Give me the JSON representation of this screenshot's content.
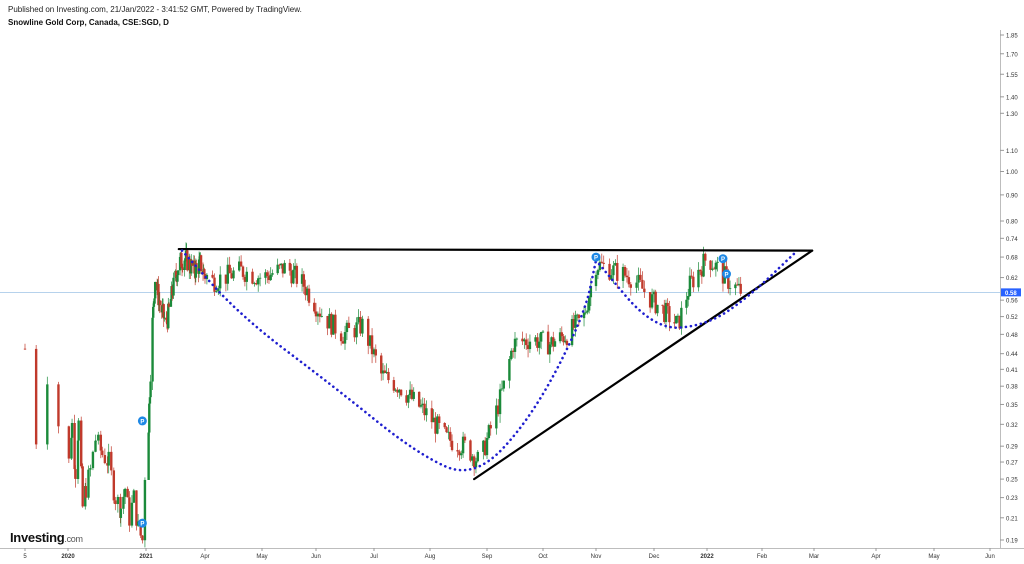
{
  "header": {
    "published": "Published on Investing.com, 21/Jan/2022 - 3:41:52 GMT, Powered by TradingView.",
    "symbol": "Snowline Gold Corp, Canada, CSE:SGD, D"
  },
  "logo": {
    "brand": "Investing",
    "suffix": ".com"
  },
  "chart_data": {
    "type": "candlestick",
    "y_axis": {
      "scale": "log",
      "ticks": [
        "1.85",
        "1.70",
        "1.55",
        "1.40",
        "1.30",
        "1.10",
        "1.00",
        "0.90",
        "0.80",
        "0.74",
        "0.68",
        "0.62",
        "0.56",
        "0.52",
        "0.48",
        "0.44",
        "0.41",
        "0.38",
        "0.35",
        "0.32",
        "0.29",
        "0.27",
        "0.25",
        "0.23",
        "0.21",
        "0.19"
      ],
      "range": [
        0.18,
        1.95
      ]
    },
    "x_axis": {
      "ticks": [
        "5",
        "2020",
        "2021",
        "Apr",
        "May",
        "Jun",
        "Jul",
        "Aug",
        "Sep",
        "Oct",
        "Nov",
        "Dec",
        "2022",
        "Feb",
        "Mar",
        "Apr",
        "May",
        "Jun"
      ]
    },
    "current_price": {
      "value": 0.58,
      "label": "0.58",
      "color": "#2962ff"
    },
    "colors": {
      "up": "#26a69a",
      "up_dark": "#1b8a3a",
      "down": "#c0392b",
      "pattern_line": "#000000",
      "cup_curve": "#1f1fcf"
    },
    "price_path": [
      {
        "date": "2019-12-05",
        "close": 0.45
      },
      {
        "date": "2019-12-12",
        "close": 0.3
      },
      {
        "date": "2019-12-19",
        "close": 0.4
      },
      {
        "date": "2019-12-26",
        "close": 0.32
      },
      {
        "date": "2020-01-05",
        "close": 0.27
      },
      {
        "date": "2020-01-20",
        "close": 0.32
      },
      {
        "date": "2020-02-05",
        "close": 0.26
      },
      {
        "date": "2020-02-20",
        "close": 0.32
      },
      {
        "date": "2020-03-10",
        "close": 0.22
      },
      {
        "date": "2020-03-25",
        "close": 0.24
      },
      {
        "date": "2020-04-15",
        "close": 0.26
      },
      {
        "date": "2020-05-10",
        "close": 0.3
      },
      {
        "date": "2020-06-10",
        "close": 0.28
      },
      {
        "date": "2020-07-10",
        "close": 0.27
      },
      {
        "date": "2020-08-10",
        "close": 0.23
      },
      {
        "date": "2020-09-05",
        "close": 0.22
      },
      {
        "date": "2020-09-25",
        "close": 0.24
      },
      {
        "date": "2020-10-15",
        "close": 0.21
      },
      {
        "date": "2020-11-05",
        "close": 0.23
      },
      {
        "date": "2020-11-25",
        "close": 0.2
      },
      {
        "date": "2020-12-15",
        "close": 0.19
      },
      {
        "date": "2021-01-05",
        "close": 0.32
      },
      {
        "date": "2021-01-10",
        "close": 0.48
      },
      {
        "date": "2021-01-15",
        "close": 0.62
      },
      {
        "date": "2021-01-22",
        "close": 0.55
      },
      {
        "date": "2021-02-01",
        "close": 0.5
      },
      {
        "date": "2021-02-10",
        "close": 0.58
      },
      {
        "date": "2021-02-20",
        "close": 0.66
      },
      {
        "date": "2021-03-01",
        "close": 0.68
      },
      {
        "date": "2021-03-15",
        "close": 0.64
      },
      {
        "date": "2021-03-25",
        "close": 0.66
      },
      {
        "date": "2021-04-05",
        "close": 0.61
      },
      {
        "date": "2021-04-20",
        "close": 0.64
      },
      {
        "date": "2021-05-01",
        "close": 0.62
      },
      {
        "date": "2021-05-15",
        "close": 0.65
      },
      {
        "date": "2021-05-25",
        "close": 0.6
      },
      {
        "date": "2021-06-05",
        "close": 0.52
      },
      {
        "date": "2021-06-15",
        "close": 0.48
      },
      {
        "date": "2021-06-25",
        "close": 0.5
      },
      {
        "date": "2021-07-05",
        "close": 0.4
      },
      {
        "date": "2021-07-15",
        "close": 0.38
      },
      {
        "date": "2021-07-25",
        "close": 0.35
      },
      {
        "date": "2021-08-01",
        "close": 0.33
      },
      {
        "date": "2021-08-10",
        "close": 0.3
      },
      {
        "date": "2021-08-20",
        "close": 0.29
      },
      {
        "date": "2021-08-28",
        "close": 0.27
      },
      {
        "date": "2021-09-05",
        "close": 0.33
      },
      {
        "date": "2021-09-10",
        "close": 0.38
      },
      {
        "date": "2021-09-15",
        "close": 0.46
      },
      {
        "date": "2021-09-25",
        "close": 0.47
      },
      {
        "date": "2021-10-05",
        "close": 0.46
      },
      {
        "date": "2021-10-15",
        "close": 0.48
      },
      {
        "date": "2021-10-25",
        "close": 0.52
      },
      {
        "date": "2021-11-01",
        "close": 0.66
      },
      {
        "date": "2021-11-10",
        "close": 0.64
      },
      {
        "date": "2021-11-20",
        "close": 0.62
      },
      {
        "date": "2021-11-30",
        "close": 0.56
      },
      {
        "date": "2021-12-10",
        "close": 0.52
      },
      {
        "date": "2021-12-15",
        "close": 0.5
      },
      {
        "date": "2021-12-22",
        "close": 0.6
      },
      {
        "date": "2022-01-01",
        "close": 0.68
      },
      {
        "date": "2022-01-08",
        "close": 0.64
      },
      {
        "date": "2022-01-15",
        "close": 0.6
      },
      {
        "date": "2022-01-21",
        "close": 0.58
      }
    ],
    "markers": [
      {
        "label": "P",
        "date": "2020-12-15",
        "price": 0.325
      },
      {
        "label": "P",
        "date": "2020-12-15",
        "price": 0.205
      },
      {
        "label": "P",
        "date": "2021-11-01",
        "price": 0.68
      },
      {
        "label": "P",
        "date": "2022-01-10",
        "price": 0.675
      },
      {
        "label": "P",
        "date": "2022-01-12",
        "price": 0.63
      }
    ],
    "annotations": {
      "resistance_line": [
        {
          "date": "2021-02-20",
          "price": 0.705
        },
        {
          "date": "2022-02-28",
          "price": 0.7
        }
      ],
      "support_line": [
        {
          "date": "2021-08-25",
          "price": 0.25
        },
        {
          "date": "2022-02-28",
          "price": 0.7
        }
      ],
      "cup_curve_1": [
        {
          "date": "2021-02-25",
          "price": 0.7
        },
        {
          "date": "2021-04-20",
          "price": 0.52
        },
        {
          "date": "2021-06-10",
          "price": 0.38
        },
        {
          "date": "2021-07-25",
          "price": 0.28
        },
        {
          "date": "2021-08-25",
          "price": 0.25
        },
        {
          "date": "2021-09-25",
          "price": 0.33
        },
        {
          "date": "2021-10-25",
          "price": 0.52
        },
        {
          "date": "2021-11-01",
          "price": 0.67
        }
      ],
      "cup_curve_2": [
        {
          "date": "2021-11-01",
          "price": 0.67
        },
        {
          "date": "2021-12-01",
          "price": 0.49
        },
        {
          "date": "2022-01-01",
          "price": 0.5
        },
        {
          "date": "2022-01-25",
          "price": 0.57
        },
        {
          "date": "2022-02-20",
          "price": 0.7
        }
      ]
    }
  }
}
